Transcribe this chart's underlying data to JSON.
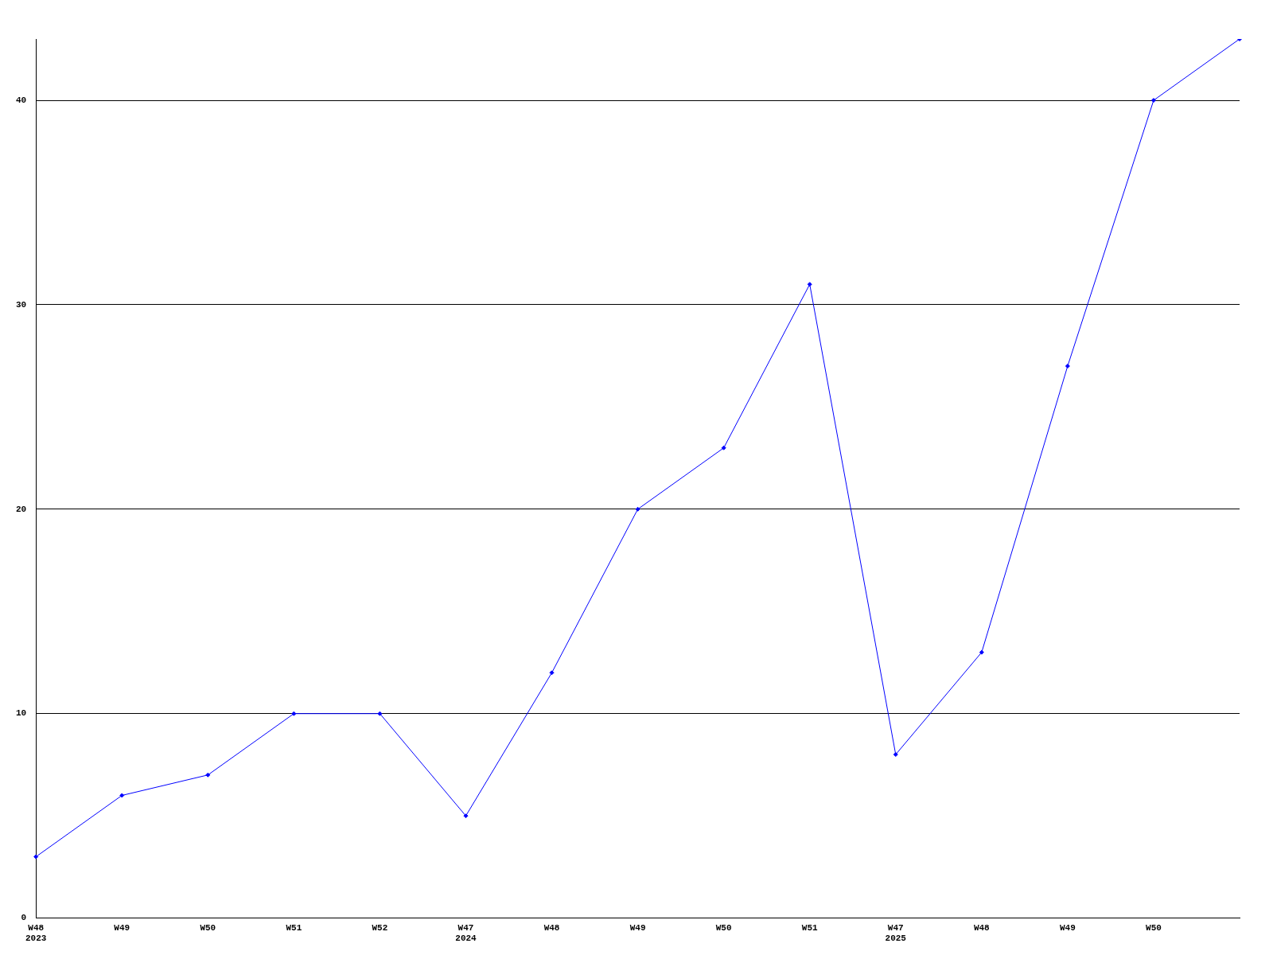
{
  "chart_data": {
    "type": "line",
    "categories": [
      "W48\n2023",
      "W49",
      "W50",
      "W51",
      "W52",
      "W47\n2024",
      "W48",
      "W49",
      "W50",
      "W51",
      "W47\n2025",
      "W48",
      "W49",
      "W50",
      null
    ],
    "series": [
      {
        "color": "#0000ff",
        "values": [
          3,
          6,
          7,
          10,
          10,
          5,
          12,
          20,
          23,
          31,
          8,
          13,
          27,
          40,
          43
        ]
      }
    ],
    "ylim": [
      0,
      43
    ],
    "yticks": [
      0,
      10,
      20,
      30,
      40
    ],
    "grid": "y",
    "legend": false,
    "marker": "diamond",
    "line_style": "solid"
  }
}
